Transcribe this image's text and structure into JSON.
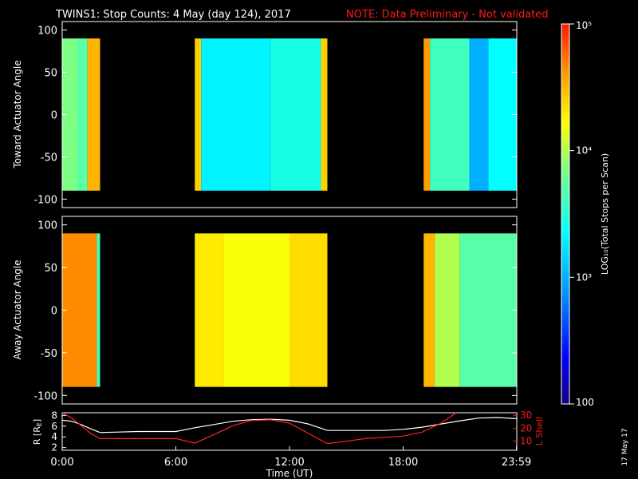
{
  "title": {
    "main": "TWINS1: Stop Counts:  4 May (day 124), 2017",
    "note": "NOTE: Data Preliminary - Not validated"
  },
  "colors": {
    "background": "#000000",
    "axes": "#ffffff",
    "note": "#ff1a1a",
    "r_line": "#ffffff",
    "lshell_line": "#ff2020"
  },
  "colorbar": {
    "label": "LOG₁₀(Total Stops per Scan)",
    "ticks": [
      {
        "value": 100,
        "label": "100"
      },
      {
        "value": 1000,
        "label": "10³"
      },
      {
        "value": 10000,
        "label": "10⁴"
      },
      {
        "value": 100000,
        "label": "10⁵"
      }
    ],
    "range": [
      100,
      100000
    ],
    "scale": "log"
  },
  "date_stamp": "17 May 17",
  "chart_data": [
    {
      "type": "heatmap",
      "ylabel": "Toward Actuator Angle",
      "ylim": [
        -110,
        110
      ],
      "yticks": [
        100,
        50,
        0,
        -50,
        -100
      ],
      "xlim_hours": [
        0,
        24
      ],
      "data_angle_range": [
        -90,
        90
      ],
      "log10_counts_by_interval": [
        {
          "start": "0:00",
          "end": "0:48",
          "level": 3.85
        },
        {
          "start": "0:48",
          "end": "1:20",
          "level": 3.7
        },
        {
          "start": "1:20",
          "end": "2:00",
          "level": 4.5
        },
        {
          "start": "7:00",
          "end": "7:20",
          "level": 4.4
        },
        {
          "start": "7:20",
          "end": "11:00",
          "level": 3.3
        },
        {
          "start": "11:00",
          "end": "13:40",
          "level": 3.45
        },
        {
          "start": "13:40",
          "end": "14:00",
          "level": 4.4
        },
        {
          "start": "19:05",
          "end": "19:25",
          "level": 4.6
        },
        {
          "start": "19:25",
          "end": "21:30",
          "level": 3.6
        },
        {
          "start": "21:30",
          "end": "22:30",
          "level": 3.0
        },
        {
          "start": "22:30",
          "end": "23:59",
          "level": 3.35
        }
      ]
    },
    {
      "type": "heatmap",
      "ylabel": "Away Actuator Angle",
      "ylim": [
        -110,
        110
      ],
      "yticks": [
        100,
        50,
        0,
        -50,
        -100
      ],
      "xlim_hours": [
        0,
        24
      ],
      "data_angle_range": [
        -90,
        90
      ],
      "log10_counts_by_interval": [
        {
          "start": "0:00",
          "end": "1:50",
          "level": 4.65
        },
        {
          "start": "1:50",
          "end": "2:00",
          "level": 3.6
        },
        {
          "start": "7:00",
          "end": "8:30",
          "level": 4.3
        },
        {
          "start": "8:30",
          "end": "12:00",
          "level": 4.2
        },
        {
          "start": "12:00",
          "end": "14:00",
          "level": 4.35
        },
        {
          "start": "19:05",
          "end": "19:40",
          "level": 4.5
        },
        {
          "start": "19:40",
          "end": "21:00",
          "level": 4.0
        },
        {
          "start": "21:00",
          "end": "23:59",
          "level": 3.7
        }
      ]
    },
    {
      "type": "line",
      "ylabel": "R [R",
      "ylabel_sub": "E",
      "y2label": "L Shell",
      "xlabel": "Time (UT)",
      "ylim": [
        1.5,
        8.5
      ],
      "yticks": [
        8,
        6,
        4,
        2
      ],
      "y2lim": [
        3,
        32
      ],
      "y2ticks": [
        30,
        20,
        10
      ],
      "xtick_labels": [
        "0:00",
        "6:00",
        "12:00",
        "18:00",
        "23:59"
      ],
      "xtick_hours": [
        0,
        6,
        12,
        18,
        23.983
      ],
      "series": [
        {
          "name": "R",
          "x_hours": [
            0,
            0.5,
            1,
            1.5,
            2,
            3,
            4,
            5,
            6,
            7,
            8,
            9,
            10,
            11,
            12,
            13,
            14,
            15,
            16,
            17,
            18,
            19,
            20,
            21,
            22,
            23,
            24
          ],
          "values": [
            7.1,
            6.9,
            6.3,
            5.5,
            4.8,
            4.9,
            5.0,
            5.0,
            5.0,
            5.7,
            6.3,
            6.9,
            7.2,
            7.3,
            7.1,
            6.4,
            5.2,
            5.2,
            5.2,
            5.2,
            5.4,
            5.8,
            6.4,
            7.0,
            7.5,
            7.6,
            7.4
          ]
        },
        {
          "name": "L Shell",
          "x_hours": [
            0,
            0.5,
            1,
            1.5,
            2,
            3,
            4,
            5,
            6,
            7,
            8,
            9,
            10,
            11,
            12,
            13,
            14,
            15,
            16,
            17,
            18,
            19,
            20,
            20.8
          ],
          "values": [
            32,
            28,
            22,
            16,
            12,
            12,
            12,
            12,
            12,
            8.5,
            15,
            22,
            26,
            26.5,
            24,
            16,
            8.2,
            10,
            12,
            13,
            14,
            17,
            24,
            32
          ]
        }
      ]
    }
  ]
}
